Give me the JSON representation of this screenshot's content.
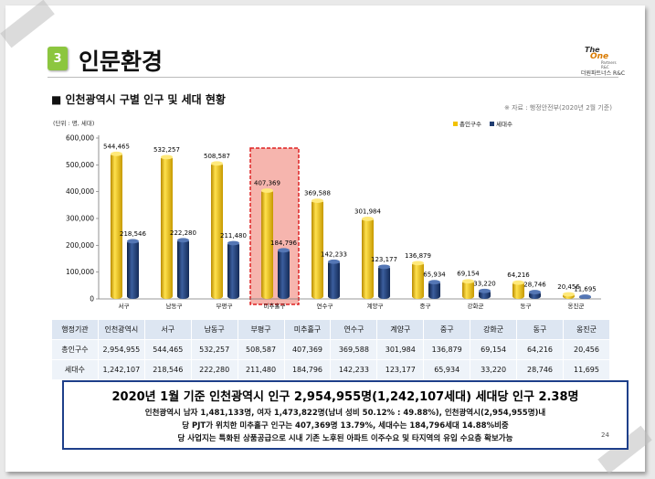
{
  "section": {
    "number": "3",
    "title": "인문환경"
  },
  "logo": {
    "line1": "The",
    "line2": "One",
    "line3": "Partners R&C",
    "line4": "더원파트너스 R&C"
  },
  "subhead": "■ 인천광역시 구별 인구 및 세대 현황",
  "source": "※ 자료 : 행정안전부(2020년 2월 기준)",
  "colors": {
    "accent": "#8cc63f",
    "population": "#f2c200",
    "households": "#1f3c70",
    "highlight": "#f4a8a0",
    "frame": "#1e3f8a"
  },
  "chart_data": {
    "type": "bar",
    "unit_label": "(단위 : 명, 세대)",
    "categories": [
      "서구",
      "남동구",
      "부평구",
      "미추홀구",
      "연수구",
      "계양구",
      "중구",
      "강화군",
      "동구",
      "옹진군"
    ],
    "series": [
      {
        "name": "총인구수",
        "values": [
          544465,
          532257,
          508587,
          407369,
          369588,
          301984,
          136879,
          69154,
          64216,
          20456
        ],
        "labels": [
          "544,465",
          "532,257",
          "508,587",
          "407,369",
          "369,588",
          "301,984",
          "136,879",
          "69,154",
          "64,216",
          "20,456"
        ]
      },
      {
        "name": "세대수",
        "values": [
          218546,
          222280,
          211480,
          184796,
          142233,
          123177,
          65934,
          33220,
          28746,
          11695
        ],
        "labels": [
          "218,546",
          "222,280",
          "211,480",
          "184,796",
          "142,233",
          "123,177",
          "65,934",
          "33,220",
          "28,746",
          "11,695"
        ]
      }
    ],
    "yticks": [
      "0",
      "100,000",
      "200,000",
      "300,000",
      "400,000",
      "500,000",
      "600,000"
    ],
    "ylim": [
      0,
      600000
    ],
    "highlight_category": "미추홀구",
    "legend_position": "top-right",
    "grid": false
  },
  "table": {
    "header": [
      "행정기관",
      "인천광역시",
      "서구",
      "남동구",
      "부평구",
      "미추홀구",
      "연수구",
      "계양구",
      "중구",
      "강화군",
      "동구",
      "옹진군"
    ],
    "rows": [
      [
        "총인구수",
        "2,954,955",
        "544,465",
        "532,257",
        "508,587",
        "407,369",
        "369,588",
        "301,984",
        "136,879",
        "69,154",
        "64,216",
        "20,456"
      ],
      [
        "세대수",
        "1,242,107",
        "218,546",
        "222,280",
        "211,480",
        "184,796",
        "142,233",
        "123,177",
        "65,934",
        "33,220",
        "28,746",
        "11,695"
      ]
    ]
  },
  "summary": {
    "line1": "2020년 1월 기준 인천광역시 인구 2,954,955명(1,242,107세대) 세대당 인구 2.38명",
    "line2": "인천광역시 남자 1,481,133명, 여자 1,473,822명(남녀 성비 50.12% : 49.88%), 인천광역시(2,954,955명)내",
    "line3": "당 PJT가 위치한 미추홀구 인구는 407,369명 13.79%, 세대수는 184,796세대 14.88%비중",
    "line4": "당 사업지는 특화된 상품공급으로 시내 기존 노후된 아파트 이주수요 및 타지역의 유입 수요층 확보가능"
  },
  "page_number": "24"
}
